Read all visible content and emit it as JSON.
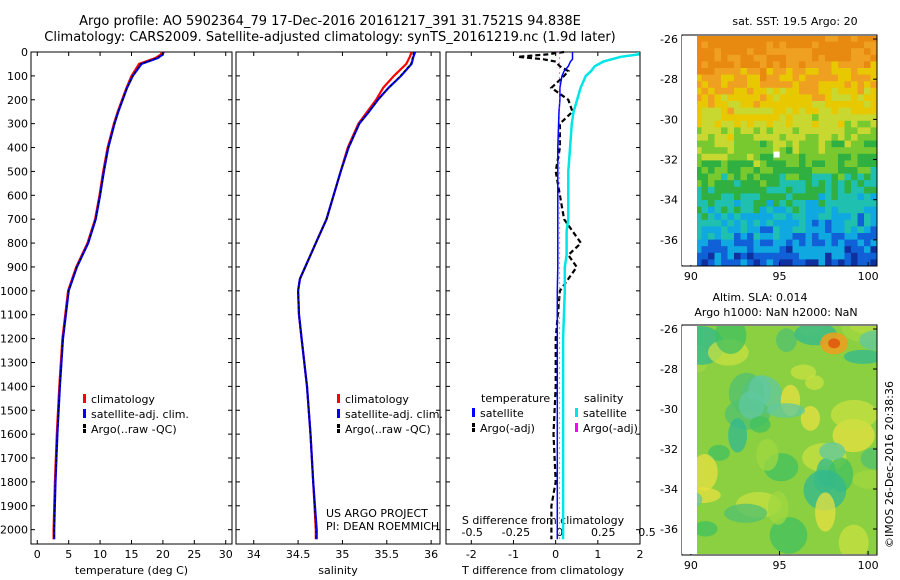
{
  "header": {
    "line1": "Argo profile: AO 5902364_79 17-Dec-2016 20161217_391 31.7521S 94.838E",
    "line2": "Climatology: CARS2009. Satellite-adjusted climatology: synTS_20161219.nc (1.9d later)"
  },
  "credit": {
    "project": "US ARGO PROJECT",
    "pi": "PI: DEAN ROEMMICH",
    "imos": "©IMOS 26-Dec-2016 20:38:36"
  },
  "colors": {
    "climatology": "#ff0000",
    "satellite": "#0000ff",
    "argo": "#000000",
    "satellite_salinity": "#00e5e5",
    "argo_salinity": "#ff00ff"
  },
  "chart_data": [
    {
      "type": "line",
      "id": "temperature",
      "xlabel": "temperature (deg C)",
      "xlim": [
        -1,
        31
      ],
      "xticks": [
        0,
        5,
        10,
        15,
        20,
        25,
        30
      ],
      "ylim": [
        2060,
        0
      ],
      "yticks": [
        0,
        100,
        200,
        300,
        400,
        500,
        600,
        700,
        800,
        900,
        1000,
        1100,
        1200,
        1300,
        1400,
        1500,
        1600,
        1700,
        1800,
        1900,
        2000
      ],
      "legend": [
        "climatology",
        "satellite-adj. clim.",
        "Argo(..raw -QC)"
      ],
      "depth": [
        0,
        10,
        25,
        50,
        75,
        100,
        150,
        200,
        250,
        300,
        400,
        500,
        600,
        700,
        800,
        900,
        1000,
        1200,
        1400,
        1600,
        1800,
        2000,
        2040
      ],
      "series": [
        {
          "name": "climatology",
          "values": [
            19.8,
            19.7,
            18.8,
            16.2,
            15.6,
            15.0,
            14.2,
            13.5,
            12.8,
            12.2,
            11.2,
            10.5,
            9.9,
            9.2,
            8.0,
            6.2,
            4.9,
            4.0,
            3.5,
            3.1,
            2.8,
            2.6,
            2.6
          ]
        },
        {
          "name": "satellite-adj. clim.",
          "values": [
            20.1,
            20.0,
            19.2,
            16.6,
            15.9,
            15.2,
            14.3,
            13.6,
            12.9,
            12.3,
            11.3,
            10.6,
            10.0,
            9.3,
            8.1,
            6.3,
            5.0,
            4.1,
            3.6,
            3.2,
            2.9,
            2.7,
            2.7
          ]
        },
        {
          "name": "Argo(..raw -QC)",
          "values": [
            20.0,
            19.9,
            19.0,
            16.4,
            15.8,
            15.2,
            14.3,
            13.6,
            12.9,
            12.3,
            11.3,
            10.6,
            10.0,
            9.3,
            8.1,
            6.3,
            5.0,
            4.1,
            3.6,
            3.2,
            2.9,
            2.7,
            2.7
          ]
        }
      ]
    },
    {
      "type": "line",
      "id": "salinity",
      "xlabel": "salinity",
      "xlim": [
        33.8,
        36.1
      ],
      "xticks": [
        34,
        34.5,
        35,
        35.5,
        36
      ],
      "xticklabels": [
        "34",
        "34.5",
        "35",
        "35.5",
        "36"
      ],
      "ylim": [
        2060,
        0
      ],
      "legend": [
        "climatology",
        "satellite-adj. clim.",
        "Argo(..raw -QC)"
      ],
      "depth": [
        0,
        20,
        50,
        100,
        150,
        200,
        250,
        300,
        400,
        500,
        600,
        700,
        800,
        900,
        950,
        1000,
        1100,
        1200,
        1400,
        1600,
        1800,
        2000,
        2040
      ],
      "series": [
        {
          "name": "climatology",
          "values": [
            35.78,
            35.76,
            35.72,
            35.58,
            35.46,
            35.38,
            35.28,
            35.18,
            35.06,
            34.98,
            34.9,
            34.82,
            34.7,
            34.58,
            34.52,
            34.5,
            34.51,
            34.54,
            34.6,
            34.64,
            34.67,
            34.7,
            34.7
          ]
        },
        {
          "name": "satellite-adj. clim.",
          "values": [
            35.82,
            35.8,
            35.78,
            35.66,
            35.52,
            35.4,
            35.3,
            35.19,
            35.07,
            34.98,
            34.9,
            34.82,
            34.7,
            34.58,
            34.52,
            34.5,
            34.51,
            34.54,
            34.6,
            34.64,
            34.67,
            34.71,
            34.71
          ]
        },
        {
          "name": "Argo(..raw -QC)",
          "values": [
            35.8,
            35.79,
            35.77,
            35.65,
            35.52,
            35.4,
            35.3,
            35.19,
            35.07,
            34.98,
            34.9,
            34.82,
            34.7,
            34.58,
            34.52,
            34.5,
            34.51,
            34.54,
            34.6,
            34.64,
            34.67,
            34.7,
            34.7
          ]
        }
      ]
    },
    {
      "type": "line",
      "id": "difference",
      "xlabel": "T difference from climatology",
      "xlabel_top": "S difference from climatology",
      "xlim": [
        -2.6,
        2.0
      ],
      "xticks": [
        -2,
        -1,
        0,
        1,
        2
      ],
      "xticks_top": [
        -0.5,
        -0.25,
        0,
        0.25,
        0.5
      ],
      "ylim": [
        2060,
        0
      ],
      "legend_headers": [
        "temperature",
        "salinity"
      ],
      "legend": [
        "satellite",
        "Argo(-adj)",
        "satellite",
        "Argo(-adj)"
      ],
      "depth": [
        0,
        10,
        20,
        30,
        40,
        60,
        80,
        100,
        150,
        200,
        250,
        300,
        400,
        500,
        600,
        700,
        750,
        800,
        850,
        900,
        1000,
        1200,
        1400,
        1600,
        1800,
        1900,
        2000,
        2040
      ],
      "series": [
        {
          "name": "T satellite",
          "values": [
            0.4,
            0.4,
            0.4,
            0.4,
            0.35,
            0.3,
            0.2,
            0.15,
            0.1,
            0.1,
            0.08,
            0.07,
            0.05,
            0.05,
            0.05,
            0.05,
            0.05,
            0.05,
            0.05,
            0.05,
            0.04,
            0.04,
            0.04,
            0.04,
            0.04,
            0.04,
            0.04,
            0.04
          ]
        },
        {
          "name": "T Argo(-adj)",
          "values": [
            0.2,
            -0.2,
            -0.9,
            -0.3,
            0.0,
            0.1,
            0.3,
            0.2,
            -0.1,
            0.3,
            0.4,
            0.1,
            0.1,
            0.0,
            0.1,
            0.2,
            0.4,
            0.6,
            0.3,
            0.5,
            0.1,
            0.0,
            0.0,
            -0.05,
            0.0,
            -0.1,
            -0.1,
            -0.1
          ]
        },
        {
          "name": "S satellite",
          "values": [
            0.45,
            0.45,
            0.35,
            0.3,
            0.25,
            0.2,
            0.18,
            0.15,
            0.12,
            0.1,
            0.08,
            0.07,
            0.06,
            0.05,
            0.05,
            0.05,
            0.04,
            0.04,
            0.04,
            0.03,
            0.03,
            0.02,
            0.02,
            0.02,
            0.02,
            0.02,
            0.02,
            0.02
          ]
        },
        {
          "name": "S Argo(-adj)",
          "values": [
            0.0,
            0.0,
            0.0,
            0.0,
            0.0,
            0.0,
            0.0,
            0.0,
            0.0,
            0.0,
            0.0,
            0.0,
            0.0,
            0.0,
            0.0,
            0.0,
            0.0,
            0.0,
            0.0,
            0.0,
            0.0,
            0.0,
            0.0,
            0.0,
            0.0,
            0.0,
            0.0,
            0.0
          ]
        }
      ]
    },
    {
      "type": "heatmap",
      "id": "sst_map",
      "title": "sat. SST: 19.5  Argo: 20",
      "xlim": [
        89.5,
        100.5
      ],
      "xticks": [
        90,
        95,
        100
      ],
      "ylim": [
        -37.3,
        -25.8
      ],
      "yticks": [
        -26,
        -28,
        -30,
        -32,
        -34,
        -36
      ],
      "float_position": [
        94.838,
        -31.7521
      ],
      "description_rows_north_to_south": [
        "orange",
        "yellow-orange",
        "yellow",
        "yellow-green",
        "green",
        "green-cyan",
        "cyan",
        "blue"
      ]
    },
    {
      "type": "heatmap",
      "id": "sla_map",
      "title": "Altim. SLA: 0.014",
      "subtitle": "Argo h1000: NaN h2000: NaN",
      "xlim": [
        89.5,
        100.5
      ],
      "xticks": [
        90,
        95,
        100
      ],
      "ylim": [
        -37.3,
        -25.8
      ],
      "yticks": [
        -26,
        -28,
        -30,
        -32,
        -34,
        -36
      ]
    }
  ]
}
